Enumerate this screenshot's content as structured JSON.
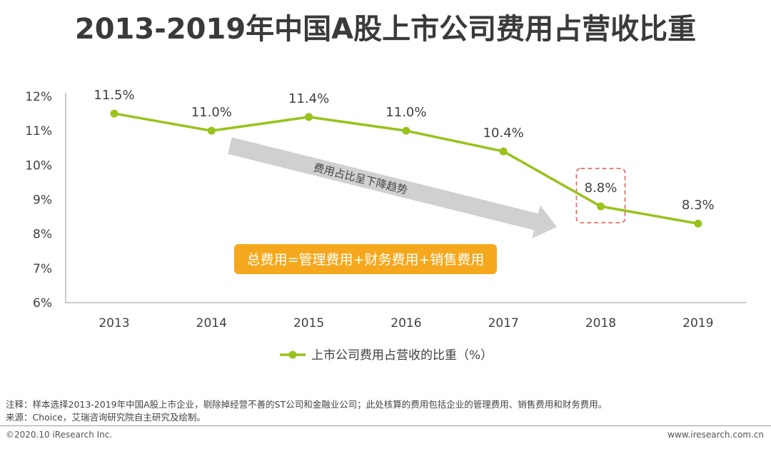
{
  "chart_data": {
    "type": "line",
    "title": "2013-2019年中国A股上市公司费用占营收比重",
    "categories": [
      "2013",
      "2014",
      "2015",
      "2016",
      "2017",
      "2018",
      "2019"
    ],
    "series": [
      {
        "name": "上市公司费用占营收的比重（%）",
        "values": [
          11.5,
          11.0,
          11.4,
          11.0,
          10.4,
          8.8,
          8.3
        ],
        "labels": [
          "11.5%",
          "11.0%",
          "11.4%",
          "11.0%",
          "10.4%",
          "8.8%",
          "8.3%"
        ]
      }
    ],
    "ylim": [
      6,
      12
    ],
    "yticks": [
      6,
      7,
      8,
      9,
      10,
      11,
      12
    ],
    "ytick_labels": [
      "6%",
      "7%",
      "8%",
      "9%",
      "10%",
      "11%",
      "12%"
    ],
    "highlighted_category": "2018",
    "trend_annotation": "费用占比呈下降趋势",
    "formula_annotation": "总费用=管理费用+财务费用+销售费用"
  },
  "colors": {
    "line": "#99c21c",
    "arrow": "#d0d0d0",
    "highlight_box": "#e07070",
    "formula_bg": "#f5a81d",
    "formula_text": "#ffffff"
  },
  "notes": {
    "note": "注释：样本选择2013-2019年中国A股上市企业，剔除掉经营不善的ST公司和金融业公司；此处核算的费用包括企业的管理费用、销售费用和财务费用。",
    "source": "来源：Choice，艾瑞咨询研究院自主研究及绘制。"
  },
  "footer": {
    "copyright": "©2020.10 iResearch Inc.",
    "website": "www.iresearch.com.cn"
  }
}
